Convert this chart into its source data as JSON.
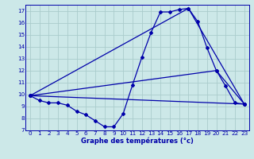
{
  "title": "Graphe des températures (°c)",
  "bg_color": "#cce8e8",
  "line_color": "#0000aa",
  "grid_color": "#aacccc",
  "xlim": [
    -0.5,
    23.5
  ],
  "ylim": [
    7,
    17.5
  ],
  "xticks": [
    0,
    1,
    2,
    3,
    4,
    5,
    6,
    7,
    8,
    9,
    10,
    11,
    12,
    13,
    14,
    15,
    16,
    17,
    18,
    19,
    20,
    21,
    22,
    23
  ],
  "yticks": [
    7,
    8,
    9,
    10,
    11,
    12,
    13,
    14,
    15,
    16,
    17
  ],
  "series": [
    {
      "x": [
        0,
        1,
        2,
        3,
        4,
        5,
        6,
        7,
        8,
        9,
        10,
        11,
        12,
        13,
        14,
        15,
        16,
        17,
        18,
        19,
        20,
        21,
        22,
        23
      ],
      "y": [
        9.9,
        9.5,
        9.3,
        9.3,
        9.1,
        8.6,
        8.3,
        7.8,
        7.3,
        7.3,
        8.4,
        10.8,
        13.1,
        15.2,
        16.9,
        16.9,
        17.1,
        17.2,
        16.1,
        13.9,
        12.0,
        10.7,
        9.3,
        9.2
      ]
    },
    {
      "x": [
        0,
        23
      ],
      "y": [
        9.9,
        9.2
      ]
    },
    {
      "x": [
        0,
        17,
        23
      ],
      "y": [
        9.9,
        17.2,
        9.2
      ]
    },
    {
      "x": [
        0,
        20,
        23
      ],
      "y": [
        9.9,
        12.0,
        9.2
      ]
    }
  ]
}
